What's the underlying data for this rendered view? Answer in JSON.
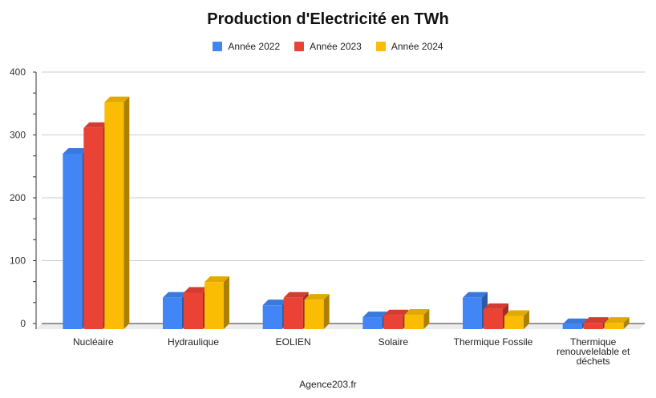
{
  "chart_data": {
    "type": "bar",
    "title": "Production d'Electricité en TWh",
    "categories": [
      "Nucléaire",
      "Hydraulique",
      "EOLIEN",
      "Solaire",
      "Thermique Fossile",
      "Thermique renouvelelable et déchets"
    ],
    "series": [
      {
        "name": "Année 2022",
        "color": "#4285F4",
        "values": [
          279,
          50,
          38,
          19,
          50,
          8
        ]
      },
      {
        "name": "Année 2023",
        "color": "#EA4335",
        "values": [
          320,
          58,
          50,
          22,
          32,
          10
        ]
      },
      {
        "name": "Année 2024",
        "color": "#FBBC04",
        "values": [
          361,
          75,
          47,
          23,
          21,
          10
        ]
      }
    ],
    "ylim": [
      0,
      400
    ],
    "yticks": [
      0,
      100,
      200,
      300,
      400
    ],
    "xlabel": "",
    "ylabel": "",
    "grid": true,
    "legend_position": "top",
    "source": "Agence203.fr"
  }
}
